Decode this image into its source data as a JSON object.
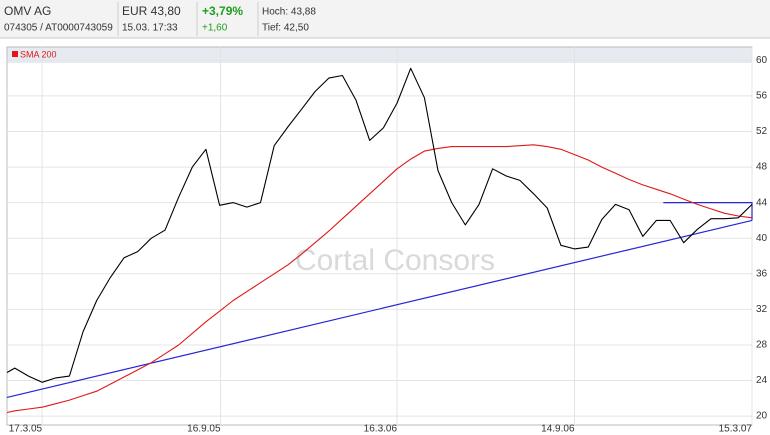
{
  "header": {
    "name": "OMV AG",
    "ids": "074305  /  AT0000743059",
    "price": "EUR 43,80",
    "time": "15.03. 17:33",
    "change_pct": "+3,79%",
    "change_abs": "+1,60",
    "high": "Hoch: 43,88",
    "low": "Tief: 42,50"
  },
  "chart_data": {
    "type": "line",
    "watermark": "Cortal Consors",
    "x": [
      "2005-02-09",
      "2005-02-17",
      "2005-03-03",
      "2005-03-17",
      "2005-03-31",
      "2005-04-14",
      "2005-04-28",
      "2005-05-12",
      "2005-05-26",
      "2005-06-09",
      "2005-06-23",
      "2005-07-07",
      "2005-07-21",
      "2005-08-04",
      "2005-08-18",
      "2005-09-01",
      "2005-09-15",
      "2005-09-29",
      "2005-10-13",
      "2005-10-27",
      "2005-11-10",
      "2005-11-24",
      "2005-12-08",
      "2005-12-22",
      "2006-01-05",
      "2006-01-19",
      "2006-02-02",
      "2006-02-16",
      "2006-03-02",
      "2006-03-16",
      "2006-03-30",
      "2006-04-13",
      "2006-04-27",
      "2006-05-11",
      "2006-05-25",
      "2006-06-08",
      "2006-06-22",
      "2006-07-06",
      "2006-07-20",
      "2006-08-03",
      "2006-08-17",
      "2006-08-31",
      "2006-09-14",
      "2006-09-28",
      "2006-10-12",
      "2006-10-26",
      "2006-11-09",
      "2006-11-23",
      "2006-12-07",
      "2006-12-21",
      "2007-01-04",
      "2007-01-18",
      "2007-02-01",
      "2007-02-15",
      "2007-03-01",
      "2007-03-15"
    ],
    "series": [
      {
        "color": "#000000",
        "values": [
          24.9,
          25.4,
          24.5,
          23.8,
          24.3,
          24.5,
          29.5,
          33.0,
          35.6,
          37.8,
          38.5,
          40.0,
          40.9,
          44.6,
          48.0,
          50.0,
          43.7,
          44.0,
          43.5,
          44.0,
          50.4,
          52.5,
          54.5,
          56.5,
          58.0,
          58.3,
          55.5,
          51.0,
          52.4,
          55.2,
          59.1,
          55.8,
          47.6,
          44.0,
          41.5,
          43.8,
          47.8,
          47.0,
          46.5,
          45.0,
          43.4,
          39.2,
          38.8,
          39.0,
          42.1,
          43.8,
          43.2,
          40.2,
          42.0,
          42.0,
          39.5,
          41.0,
          42.2,
          42.2,
          42.3,
          43.8
        ]
      },
      {
        "name": "SMA 200",
        "color": "#e01818",
        "values": [
          20.4,
          20.6,
          20.8,
          21.0,
          21.4,
          21.8,
          22.3,
          22.8,
          23.6,
          24.4,
          25.2,
          26.0,
          27.0,
          28.0,
          29.3,
          30.6,
          31.8,
          33.0,
          34.0,
          35.0,
          36.0,
          37.0,
          38.2,
          39.5,
          40.8,
          42.2,
          43.6,
          45.0,
          46.4,
          47.8,
          48.9,
          49.8,
          50.1,
          50.3,
          50.3,
          50.3,
          50.3,
          50.3,
          50.4,
          50.5,
          50.3,
          50.0,
          49.4,
          48.8,
          48.0,
          47.3,
          46.6,
          46.0,
          45.5,
          45.0,
          44.4,
          43.8,
          43.3,
          42.8,
          42.5,
          42.3
        ]
      }
    ],
    "trend_lines": [
      {
        "color": "#2626d6",
        "x": [
          "2005-02-09",
          "2007-03-15"
        ],
        "values": [
          22.1,
          42.0
        ]
      },
      {
        "color": "#2626d6",
        "x": [
          "2006-12-14",
          "2007-03-15",
          "2007-03-15"
        ],
        "values": [
          44.0,
          44.0,
          42.0
        ]
      }
    ],
    "xlim": [
      "2005-02-09",
      "2007-03-15"
    ],
    "xticks": [
      {
        "value": "2005-03-17",
        "label": "17.3.05"
      },
      {
        "value": "2005-09-16",
        "label": "16.9.05"
      },
      {
        "value": "2006-03-16",
        "label": "16.3.06"
      },
      {
        "value": "2006-09-14",
        "label": "14.9.06"
      },
      {
        "value": "2007-03-15",
        "label": "15.3.07"
      }
    ],
    "ylim": [
      19,
      61.5
    ],
    "yticks": [
      20,
      24,
      28,
      32,
      36,
      40,
      44,
      48,
      52,
      56,
      60
    ],
    "grid": true
  }
}
